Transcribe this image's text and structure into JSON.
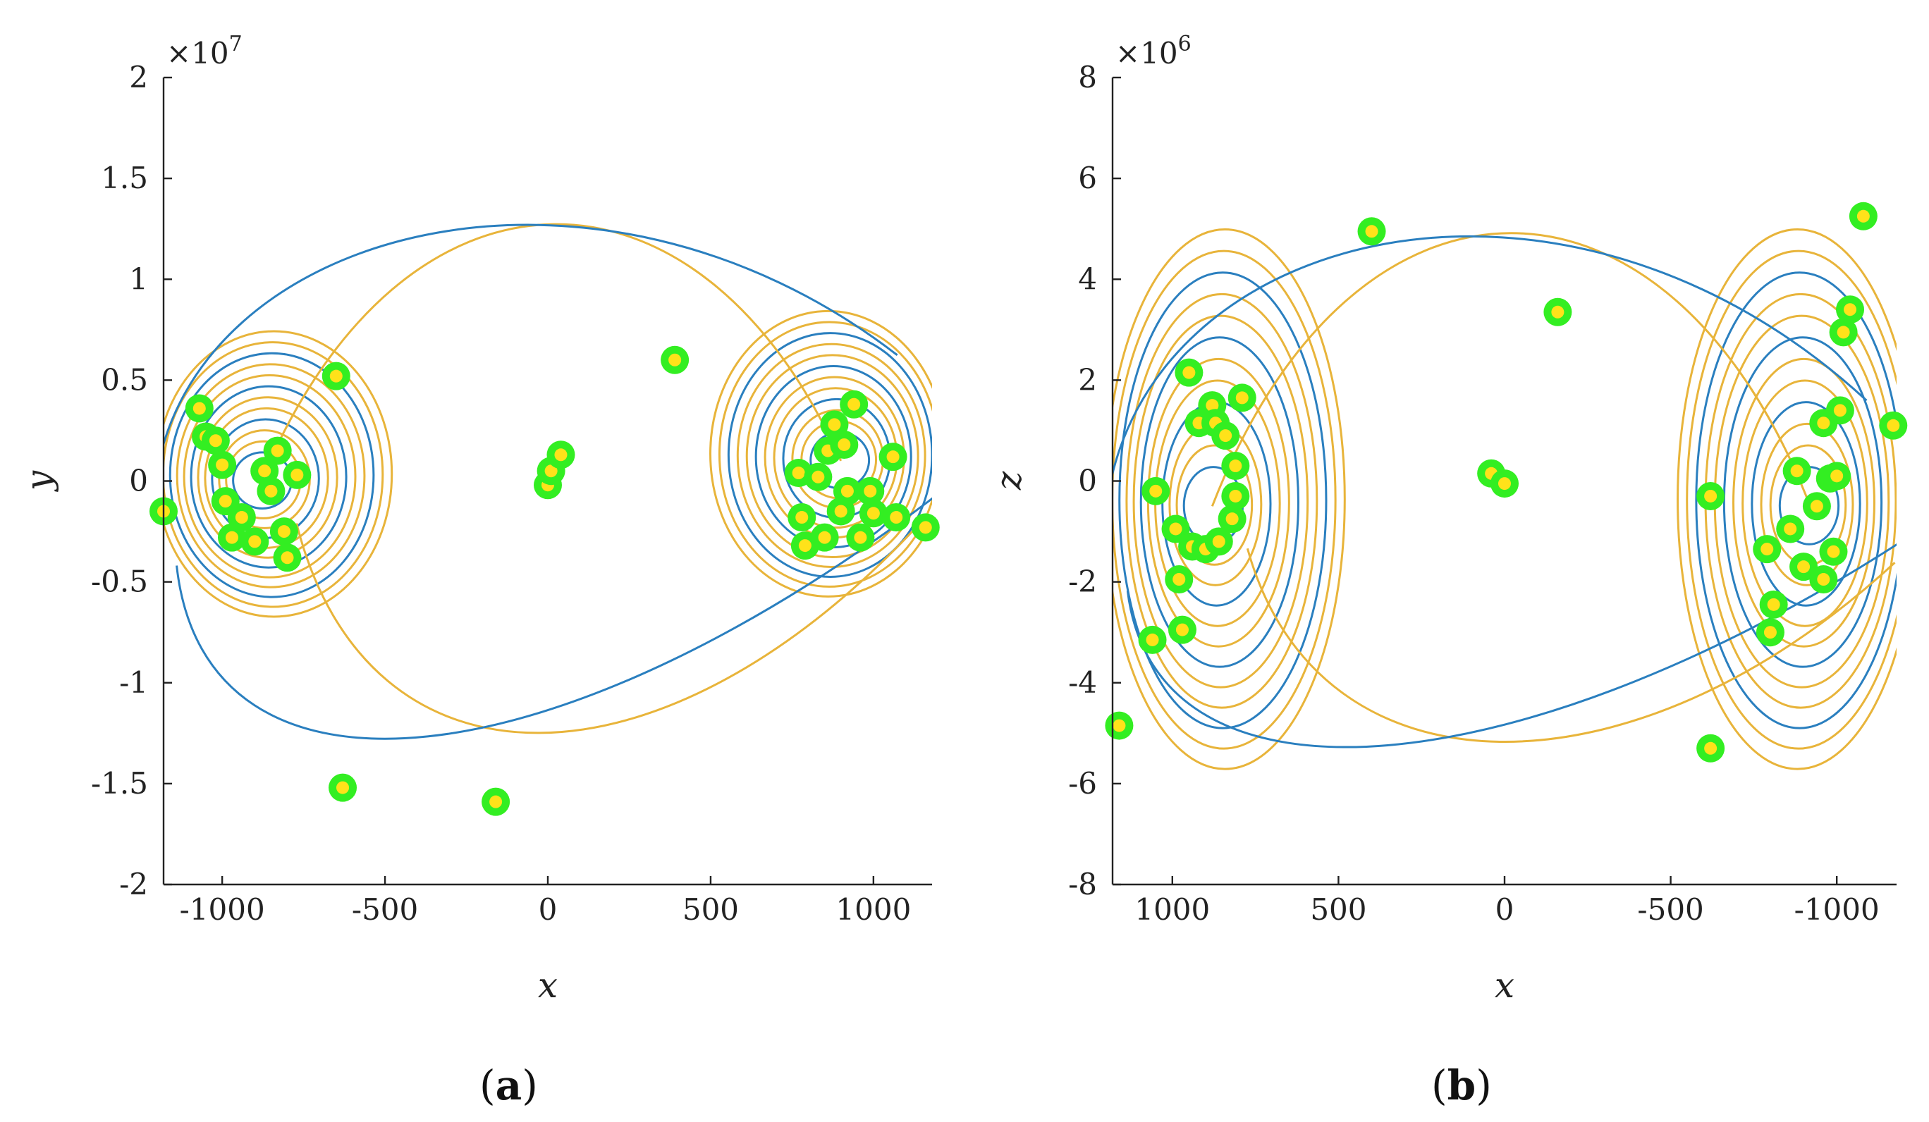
{
  "chart_data": [
    {
      "panel": "(a)",
      "type": "line",
      "xlabel": "x",
      "ylabel": "y",
      "scale_note": "×10^7",
      "exponent_base": "×10",
      "exponent_power": "7",
      "xlim": [
        -1180,
        1180
      ],
      "ylim": [
        -2,
        2
      ],
      "xticks": [
        -1000,
        -500,
        0,
        500,
        1000
      ],
      "xtick_labels": [
        "-1000",
        "-500",
        "0",
        "500",
        "1000"
      ],
      "yticks": [
        -2,
        -1.5,
        -1,
        -0.5,
        0,
        0.5,
        1,
        1.5,
        2
      ],
      "ytick_labels": [
        "-2",
        "-1.5",
        "-1",
        "-0.5",
        "0",
        "0.5",
        "1",
        "1.5",
        "2"
      ],
      "series": [
        {
          "name": "trajectory-1",
          "color": "#2a7fbf",
          "description": "chaotic trajectory winding around two foci"
        },
        {
          "name": "trajectory-2",
          "color": "#e8b43a",
          "description": "chaotic trajectory winding around two foci"
        }
      ],
      "attractor_foci": [
        [
          -880,
          0.0
        ],
        [
          900,
          0.1
        ]
      ],
      "marked_points": [
        [
          -1180,
          -0.15
        ],
        [
          -1070,
          0.36
        ],
        [
          -1050,
          0.22
        ],
        [
          -1020,
          0.2
        ],
        [
          -1000,
          0.08
        ],
        [
          -990,
          -0.1
        ],
        [
          -970,
          -0.28
        ],
        [
          -940,
          -0.18
        ],
        [
          -900,
          -0.3
        ],
        [
          -870,
          0.05
        ],
        [
          -850,
          -0.05
        ],
        [
          -830,
          0.15
        ],
        [
          -810,
          -0.25
        ],
        [
          -800,
          -0.38
        ],
        [
          -770,
          0.03
        ],
        [
          -650,
          0.52
        ],
        [
          -630,
          -1.52
        ],
        [
          -160,
          -1.59
        ],
        [
          0,
          -0.02
        ],
        [
          10,
          0.05
        ],
        [
          40,
          0.13
        ],
        [
          390,
          0.6
        ],
        [
          770,
          0.04
        ],
        [
          780,
          -0.18
        ],
        [
          790,
          -0.32
        ],
        [
          830,
          0.02
        ],
        [
          850,
          -0.28
        ],
        [
          860,
          0.15
        ],
        [
          880,
          0.28
        ],
        [
          900,
          -0.15
        ],
        [
          910,
          0.18
        ],
        [
          920,
          -0.05
        ],
        [
          940,
          0.38
        ],
        [
          960,
          -0.28
        ],
        [
          990,
          -0.05
        ],
        [
          1000,
          -0.16
        ],
        [
          1060,
          0.12
        ],
        [
          1070,
          -0.18
        ],
        [
          1160,
          -0.23
        ]
      ]
    },
    {
      "panel": "(b)",
      "type": "line",
      "xlabel": "x",
      "ylabel": "z",
      "scale_note": "×10^6",
      "exponent_base": "×10",
      "exponent_power": "6",
      "xlim": [
        1180,
        -1180
      ],
      "ylim": [
        -8,
        8
      ],
      "xticks": [
        1000,
        500,
        0,
        -500,
        -1000
      ],
      "xtick_labels": [
        "1000",
        "500",
        "0",
        "-500",
        "-1000"
      ],
      "yticks": [
        -8,
        -6,
        -4,
        -2,
        0,
        2,
        4,
        6,
        8
      ],
      "ytick_labels": [
        "-8",
        "-6",
        "-4",
        "-2",
        "0",
        "2",
        "4",
        "6",
        "8"
      ],
      "series": [
        {
          "name": "trajectory-1",
          "color": "#2a7fbf",
          "description": "chaotic trajectory winding around two foci"
        },
        {
          "name": "trajectory-2",
          "color": "#e8b43a",
          "description": "chaotic trajectory winding around two foci"
        }
      ],
      "attractor_foci": [
        [
          880,
          -0.5
        ],
        [
          -920,
          -0.5
        ]
      ],
      "marked_points": [
        [
          1160,
          -4.85
        ],
        [
          1060,
          -3.15
        ],
        [
          1050,
          -0.2
        ],
        [
          990,
          -0.95
        ],
        [
          980,
          -1.95
        ],
        [
          970,
          -2.95
        ],
        [
          950,
          2.15
        ],
        [
          940,
          -1.3
        ],
        [
          920,
          1.15
        ],
        [
          900,
          -1.35
        ],
        [
          880,
          1.5
        ],
        [
          870,
          1.15
        ],
        [
          860,
          -1.2
        ],
        [
          840,
          0.9
        ],
        [
          820,
          -0.75
        ],
        [
          810,
          0.3
        ],
        [
          810,
          -0.3
        ],
        [
          790,
          1.65
        ],
        [
          400,
          4.95
        ],
        [
          40,
          0.15
        ],
        [
          0,
          -0.05
        ],
        [
          -160,
          3.35
        ],
        [
          -620,
          -0.3
        ],
        [
          -620,
          -5.3
        ],
        [
          -790,
          -1.35
        ],
        [
          -800,
          -3.0
        ],
        [
          -810,
          -2.45
        ],
        [
          -860,
          -0.95
        ],
        [
          -880,
          0.2
        ],
        [
          -900,
          -1.7
        ],
        [
          -940,
          -0.5
        ],
        [
          -960,
          1.15
        ],
        [
          -960,
          -1.95
        ],
        [
          -980,
          0.05
        ],
        [
          -990,
          -1.4
        ],
        [
          -1000,
          0.1
        ],
        [
          -1010,
          1.4
        ],
        [
          -1020,
          2.95
        ],
        [
          -1040,
          3.4
        ],
        [
          -1080,
          5.25
        ],
        [
          -1170,
          1.1
        ]
      ]
    }
  ],
  "captions": [
    {
      "open": "(",
      "letter": "a",
      "close": ")"
    },
    {
      "open": "(",
      "letter": "b",
      "close": ")"
    }
  ]
}
